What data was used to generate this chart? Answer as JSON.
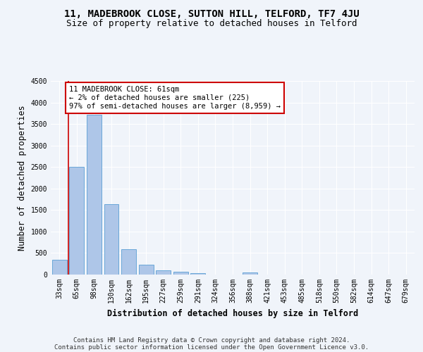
{
  "title_line1": "11, MADEBROOK CLOSE, SUTTON HILL, TELFORD, TF7 4JU",
  "title_line2": "Size of property relative to detached houses in Telford",
  "xlabel": "Distribution of detached houses by size in Telford",
  "ylabel": "Number of detached properties",
  "footer_line1": "Contains HM Land Registry data © Crown copyright and database right 2024.",
  "footer_line2": "Contains public sector information licensed under the Open Government Licence v3.0.",
  "categories": [
    "33sqm",
    "65sqm",
    "98sqm",
    "130sqm",
    "162sqm",
    "195sqm",
    "227sqm",
    "259sqm",
    "291sqm",
    "324sqm",
    "356sqm",
    "388sqm",
    "421sqm",
    "453sqm",
    "485sqm",
    "518sqm",
    "550sqm",
    "582sqm",
    "614sqm",
    "647sqm",
    "679sqm"
  ],
  "values": [
    350,
    2500,
    3720,
    1630,
    590,
    225,
    105,
    60,
    38,
    0,
    0,
    55,
    0,
    0,
    0,
    0,
    0,
    0,
    0,
    0,
    0
  ],
  "bar_color": "#aec6e8",
  "bar_edge_color": "#5a9fd4",
  "annotation_box_text": "11 MADEBROOK CLOSE: 61sqm\n← 2% of detached houses are smaller (225)\n97% of semi-detached houses are larger (8,959) →",
  "annotation_box_color": "#cc0000",
  "vline_color": "#cc0000",
  "ylim": [
    0,
    4500
  ],
  "yticks": [
    0,
    500,
    1000,
    1500,
    2000,
    2500,
    3000,
    3500,
    4000,
    4500
  ],
  "bg_color": "#f0f4fa",
  "plot_bg_color": "#f0f4fa",
  "grid_color": "#ffffff",
  "title_fontsize": 10,
  "subtitle_fontsize": 9,
  "axis_label_fontsize": 8.5,
  "tick_fontsize": 7,
  "annotation_fontsize": 7.5,
  "footer_fontsize": 6.5
}
